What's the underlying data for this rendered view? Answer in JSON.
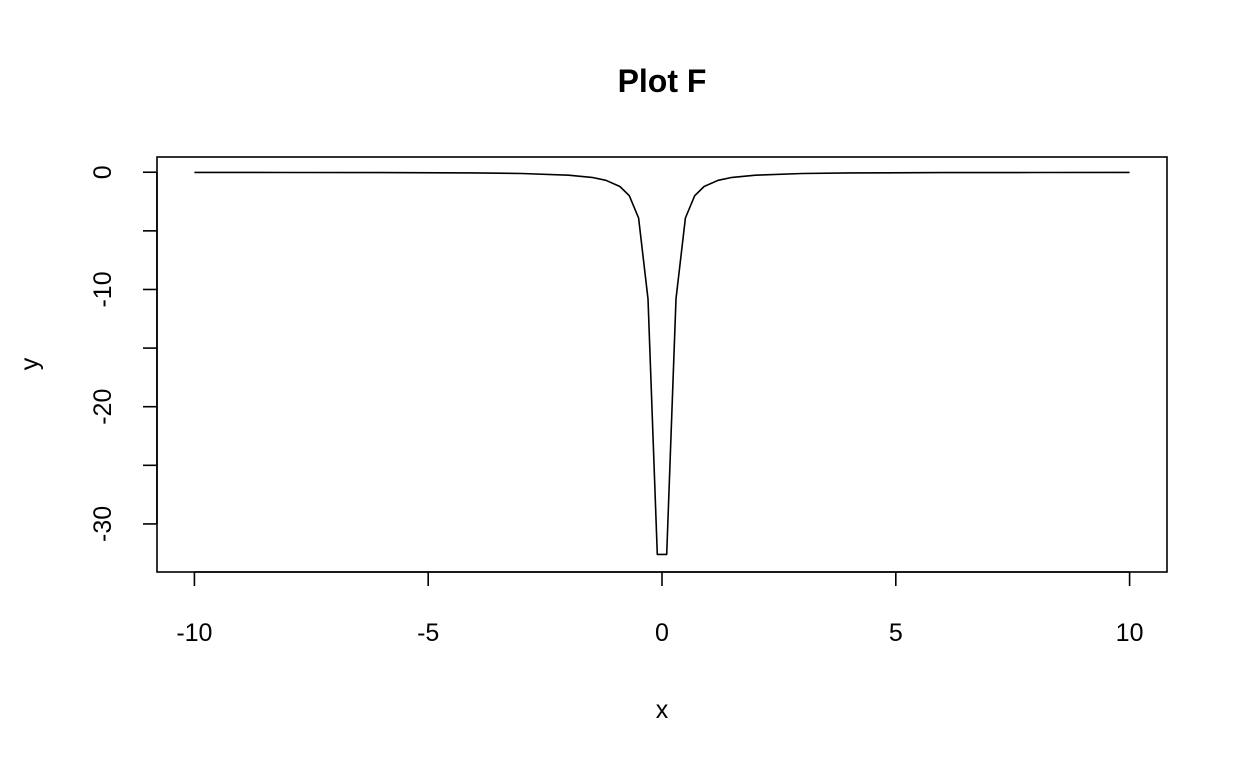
{
  "chart_data": {
    "type": "line",
    "title": "Plot F",
    "xlabel": "x",
    "ylabel": "y",
    "xlim": [
      -10.8,
      10.8
    ],
    "ylim": [
      -34.1,
      1.3
    ],
    "x_ticks": [
      -10,
      -5,
      0,
      5,
      10
    ],
    "x_tick_labels": [
      "-10",
      "-5",
      "0",
      "5",
      "10"
    ],
    "y_ticks": [
      -30,
      -25,
      -20,
      -15,
      -10,
      -5,
      0
    ],
    "y_tick_labels": [
      "-30",
      "",
      "-20",
      "",
      "-10",
      "",
      "0"
    ],
    "grid": false,
    "legend": "none",
    "series": [
      {
        "color": "#000000",
        "points": [
          [
            -10,
            -0.01
          ],
          [
            -8,
            -0.02
          ],
          [
            -6,
            -0.03
          ],
          [
            -4,
            -0.06
          ],
          [
            -3,
            -0.11
          ],
          [
            -2,
            -0.25
          ],
          [
            -1.5,
            -0.44
          ],
          [
            -1.2,
            -0.69
          ],
          [
            -0.9,
            -1.22
          ],
          [
            -0.7,
            -2.0
          ],
          [
            -0.5,
            -3.9
          ],
          [
            -0.3,
            -10.8
          ],
          [
            -0.1,
            -32.6
          ],
          [
            0.1,
            -32.6
          ],
          [
            0.3,
            -10.8
          ],
          [
            0.5,
            -3.9
          ],
          [
            0.7,
            -2.0
          ],
          [
            0.9,
            -1.22
          ],
          [
            1.2,
            -0.69
          ],
          [
            1.5,
            -0.44
          ],
          [
            2,
            -0.25
          ],
          [
            3,
            -0.11
          ],
          [
            4,
            -0.06
          ],
          [
            6,
            -0.03
          ],
          [
            8,
            -0.02
          ],
          [
            10,
            -0.01
          ]
        ]
      }
    ]
  }
}
